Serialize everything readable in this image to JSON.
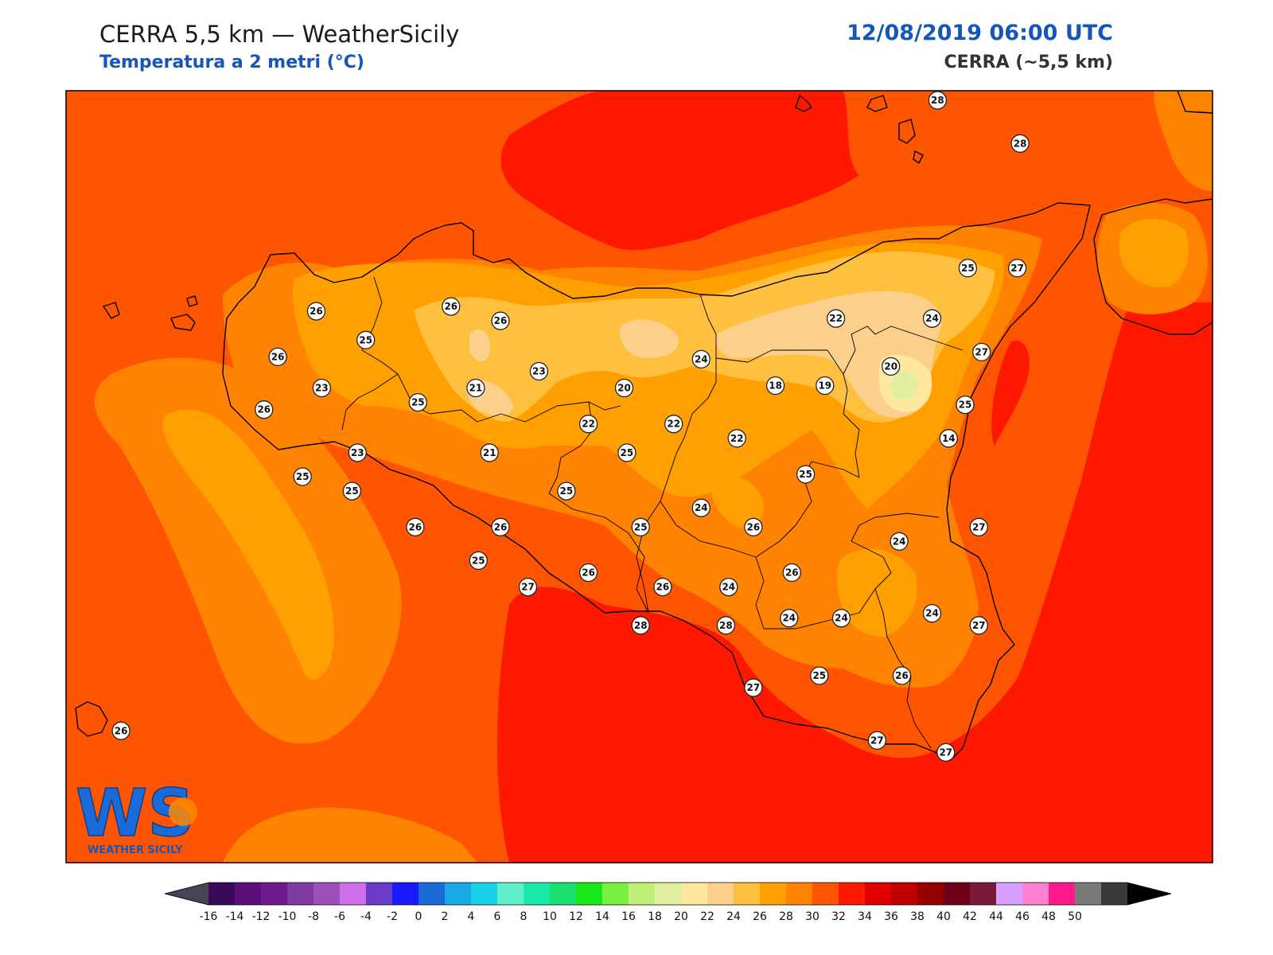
{
  "header": {
    "title": "CERRA 5,5 km — WeatherSicily",
    "subtitle": "Temperatura a 2 metri (°C)",
    "datetime": "12/08/2019 06:00 UTC",
    "source": "CERRA (~5,5 km)"
  },
  "logo": {
    "text": "WS",
    "caption": "WEATHER SICILY"
  },
  "stations": [
    {
      "v": "28",
      "lon": 14.95,
      "lat": 38.96
    },
    {
      "v": "28",
      "lon": 15.25,
      "lat": 38.78
    },
    {
      "v": "26",
      "lon": 12.69,
      "lat": 38.08
    },
    {
      "v": "26",
      "lon": 13.18,
      "lat": 38.1
    },
    {
      "v": "26",
      "lon": 13.36,
      "lat": 38.04
    },
    {
      "v": "25",
      "lon": 12.87,
      "lat": 37.96
    },
    {
      "v": "26",
      "lon": 12.55,
      "lat": 37.89
    },
    {
      "v": "23",
      "lon": 12.71,
      "lat": 37.76
    },
    {
      "v": "21",
      "lon": 13.27,
      "lat": 37.76
    },
    {
      "v": "23",
      "lon": 13.5,
      "lat": 37.83
    },
    {
      "v": "25",
      "lon": 13.06,
      "lat": 37.7
    },
    {
      "v": "20",
      "lon": 13.81,
      "lat": 37.76
    },
    {
      "v": "24",
      "lon": 14.09,
      "lat": 37.88
    },
    {
      "v": "22",
      "lon": 14.58,
      "lat": 38.05
    },
    {
      "v": "24",
      "lon": 14.93,
      "lat": 38.05
    },
    {
      "v": "25",
      "lon": 15.06,
      "lat": 38.26
    },
    {
      "v": "27",
      "lon": 15.24,
      "lat": 38.26
    },
    {
      "v": "20",
      "lon": 14.78,
      "lat": 37.85
    },
    {
      "v": "27",
      "lon": 15.11,
      "lat": 37.91
    },
    {
      "v": "18",
      "lon": 14.36,
      "lat": 37.77
    },
    {
      "v": "19",
      "lon": 14.54,
      "lat": 37.77
    },
    {
      "v": "26",
      "lon": 12.5,
      "lat": 37.67
    },
    {
      "v": "22",
      "lon": 13.68,
      "lat": 37.61
    },
    {
      "v": "22",
      "lon": 13.99,
      "lat": 37.61
    },
    {
      "v": "22",
      "lon": 14.22,
      "lat": 37.55
    },
    {
      "v": "25",
      "lon": 15.05,
      "lat": 37.69
    },
    {
      "v": "14",
      "lon": 14.99,
      "lat": 37.55
    },
    {
      "v": "23",
      "lon": 12.84,
      "lat": 37.49
    },
    {
      "v": "21",
      "lon": 13.32,
      "lat": 37.49
    },
    {
      "v": "25",
      "lon": 13.82,
      "lat": 37.49
    },
    {
      "v": "25",
      "lon": 12.64,
      "lat": 37.39
    },
    {
      "v": "25",
      "lon": 12.82,
      "lat": 37.33
    },
    {
      "v": "25",
      "lon": 13.6,
      "lat": 37.33
    },
    {
      "v": "25",
      "lon": 14.47,
      "lat": 37.4
    },
    {
      "v": "24",
      "lon": 14.09,
      "lat": 37.26
    },
    {
      "v": "26",
      "lon": 13.05,
      "lat": 37.18
    },
    {
      "v": "26",
      "lon": 13.36,
      "lat": 37.18
    },
    {
      "v": "25",
      "lon": 13.87,
      "lat": 37.18
    },
    {
      "v": "26",
      "lon": 14.28,
      "lat": 37.18
    },
    {
      "v": "27",
      "lon": 15.1,
      "lat": 37.18
    },
    {
      "v": "24",
      "lon": 14.81,
      "lat": 37.12
    },
    {
      "v": "25",
      "lon": 13.28,
      "lat": 37.04
    },
    {
      "v": "26",
      "lon": 13.68,
      "lat": 36.99
    },
    {
      "v": "26",
      "lon": 13.95,
      "lat": 36.93
    },
    {
      "v": "24",
      "lon": 14.19,
      "lat": 36.93
    },
    {
      "v": "26",
      "lon": 14.42,
      "lat": 36.99
    },
    {
      "v": "27",
      "lon": 13.46,
      "lat": 36.93
    },
    {
      "v": "24",
      "lon": 14.93,
      "lat": 36.82
    },
    {
      "v": "24",
      "lon": 14.41,
      "lat": 36.8
    },
    {
      "v": "24",
      "lon": 14.6,
      "lat": 36.8
    },
    {
      "v": "28",
      "lon": 13.87,
      "lat": 36.77
    },
    {
      "v": "28",
      "lon": 14.18,
      "lat": 36.77
    },
    {
      "v": "27",
      "lon": 15.1,
      "lat": 36.77
    },
    {
      "v": "25",
      "lon": 14.52,
      "lat": 36.56
    },
    {
      "v": "26",
      "lon": 14.82,
      "lat": 36.56
    },
    {
      "v": "27",
      "lon": 14.28,
      "lat": 36.51
    },
    {
      "v": "27",
      "lon": 14.73,
      "lat": 36.29
    },
    {
      "v": "27",
      "lon": 14.98,
      "lat": 36.24
    },
    {
      "v": "26",
      "lon": 11.98,
      "lat": 36.33
    }
  ],
  "colorbar": {
    "extend": "both",
    "ticks": [
      "-16",
      "-14",
      "-12",
      "-10",
      "-8",
      "-6",
      "-4",
      "-2",
      "0",
      "2",
      "4",
      "6",
      "8",
      "10",
      "12",
      "14",
      "16",
      "18",
      "20",
      "22",
      "24",
      "26",
      "28",
      "30",
      "32",
      "34",
      "36",
      "38",
      "40",
      "42",
      "44",
      "46",
      "48",
      "50"
    ],
    "colors": [
      "#3a0a5a",
      "#5a0f78",
      "#6e1a8c",
      "#7e3aa0",
      "#9a50b8",
      "#d070e8",
      "#6a3ac8",
      "#1a1aff",
      "#1a6ad8",
      "#18a8e8",
      "#18d0e8",
      "#60f0c8",
      "#18e8a8",
      "#18e070",
      "#18e818",
      "#78f040",
      "#c0f078",
      "#e0f0a0",
      "#ffe8a0",
      "#fcd08a",
      "#ffc040",
      "#ffa000",
      "#ff8200",
      "#ff5400",
      "#ff1800",
      "#e00000",
      "#c00000",
      "#980000",
      "#70001a",
      "#7a1a3a",
      "#d8a0ff",
      "#ff80d0",
      "#ff1888",
      "#7a7a7a",
      "#3a3a3a"
    ],
    "under_color": "#444455",
    "over_color": "#000000"
  },
  "colors": {
    "t30": "#ff1800",
    "t28": "#ff5400",
    "t26": "#ff8200",
    "t24": "#ffa000",
    "t22": "#ffc040",
    "t20": "#fcd08a",
    "t18": "#ffe8a0",
    "title_blue": "#1556b8"
  }
}
